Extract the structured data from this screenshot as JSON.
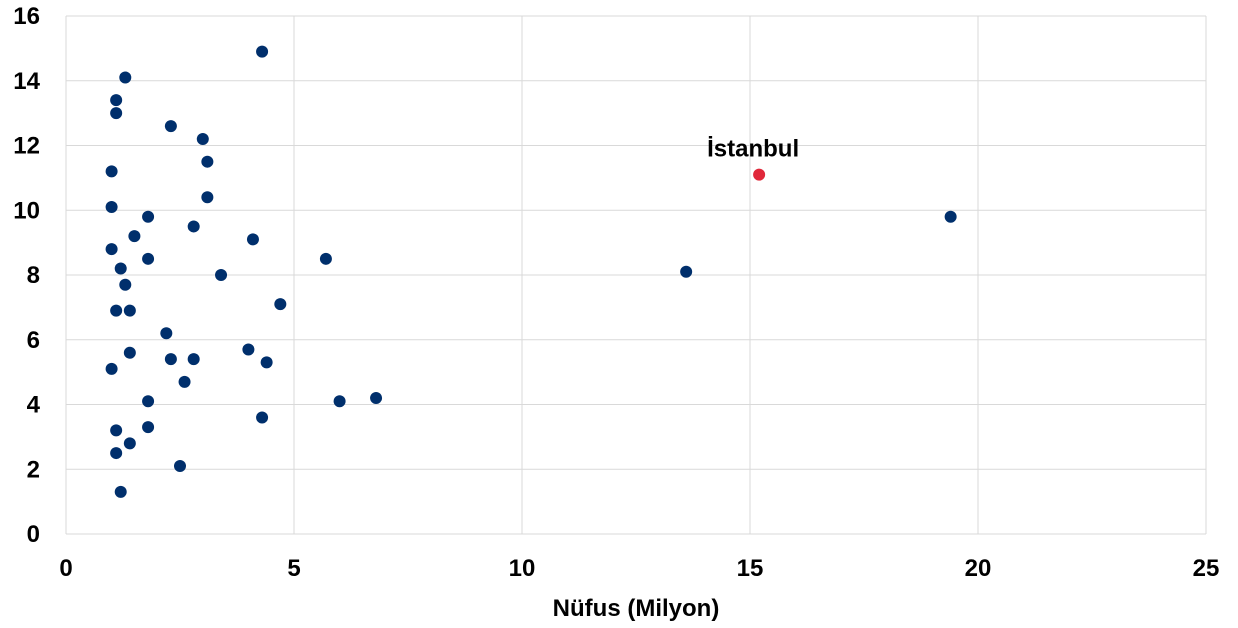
{
  "chart_data": {
    "type": "scatter",
    "title": "",
    "xlabel": "Nüfus (Milyon)",
    "ylabel": "",
    "xlim": [
      0,
      25
    ],
    "ylim": [
      0,
      16
    ],
    "x_ticks": [
      0,
      5,
      10,
      15,
      20,
      25
    ],
    "y_ticks": [
      0,
      2,
      4,
      6,
      8,
      10,
      12,
      14,
      16
    ],
    "grid": true,
    "colors": {
      "default": "#002f6c",
      "highlight": "#e0283a",
      "grid": "#d9d9d9"
    },
    "series": [
      {
        "points": [
          {
            "x": 4.3,
            "y": 14.9
          },
          {
            "x": 1.3,
            "y": 14.1
          },
          {
            "x": 1.1,
            "y": 13.4
          },
          {
            "x": 1.1,
            "y": 13.0
          },
          {
            "x": 2.3,
            "y": 12.6
          },
          {
            "x": 3.0,
            "y": 12.2
          },
          {
            "x": 3.1,
            "y": 11.5
          },
          {
            "x": 1.0,
            "y": 11.2
          },
          {
            "x": 3.1,
            "y": 10.4
          },
          {
            "x": 1.0,
            "y": 10.1
          },
          {
            "x": 1.8,
            "y": 9.8
          },
          {
            "x": 2.8,
            "y": 9.5
          },
          {
            "x": 1.5,
            "y": 9.2
          },
          {
            "x": 4.1,
            "y": 9.1
          },
          {
            "x": 1.0,
            "y": 8.8
          },
          {
            "x": 1.8,
            "y": 8.5
          },
          {
            "x": 5.7,
            "y": 8.5
          },
          {
            "x": 1.2,
            "y": 8.2
          },
          {
            "x": 13.6,
            "y": 8.1
          },
          {
            "x": 3.4,
            "y": 8.0
          },
          {
            "x": 1.3,
            "y": 7.7
          },
          {
            "x": 4.7,
            "y": 7.1
          },
          {
            "x": 1.1,
            "y": 6.9
          },
          {
            "x": 1.4,
            "y": 6.9
          },
          {
            "x": 2.2,
            "y": 6.2
          },
          {
            "x": 4.0,
            "y": 5.7
          },
          {
            "x": 1.4,
            "y": 5.6
          },
          {
            "x": 2.3,
            "y": 5.4
          },
          {
            "x": 2.8,
            "y": 5.4
          },
          {
            "x": 4.4,
            "y": 5.3
          },
          {
            "x": 1.0,
            "y": 5.1
          },
          {
            "x": 2.6,
            "y": 4.7
          },
          {
            "x": 6.8,
            "y": 4.2
          },
          {
            "x": 1.8,
            "y": 4.1
          },
          {
            "x": 6.0,
            "y": 4.1
          },
          {
            "x": 4.3,
            "y": 3.6
          },
          {
            "x": 1.1,
            "y": 3.2
          },
          {
            "x": 1.8,
            "y": 3.3
          },
          {
            "x": 1.4,
            "y": 2.8
          },
          {
            "x": 1.1,
            "y": 2.5
          },
          {
            "x": 2.5,
            "y": 2.1
          },
          {
            "x": 1.2,
            "y": 1.3
          },
          {
            "x": 19.4,
            "y": 9.8
          }
        ]
      },
      {
        "points": [
          {
            "x": 15.2,
            "y": 11.1,
            "label": "İstanbul"
          }
        ]
      }
    ]
  }
}
